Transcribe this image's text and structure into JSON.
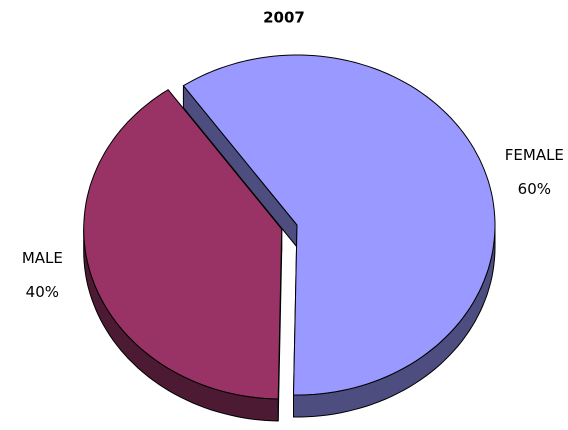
{
  "chart_data": {
    "type": "pie",
    "title": "2007",
    "categories": [
      "FEMALE",
      "MALE"
    ],
    "values": [
      60,
      40
    ],
    "value_labels": [
      "60%",
      "40%"
    ],
    "colors": [
      "#9999ff",
      "#993366"
    ]
  }
}
